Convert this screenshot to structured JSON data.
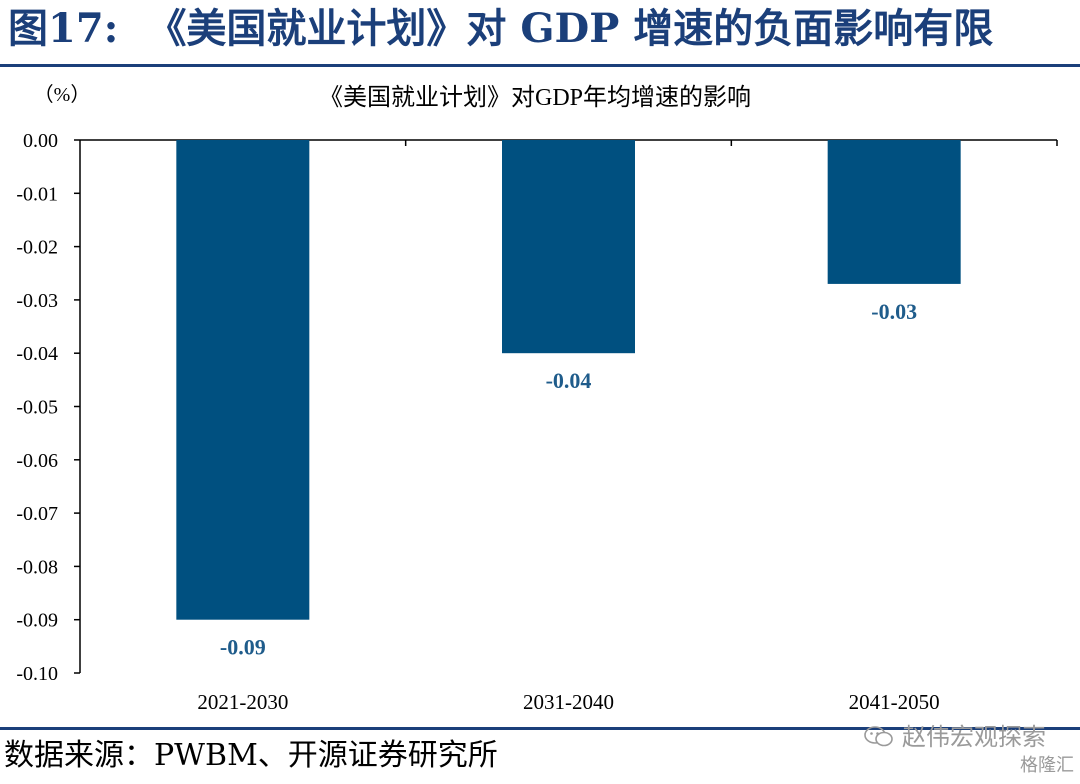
{
  "figure": {
    "number": "图17:",
    "title": "《美国就业计划》对 GDP 增速的负面影响有限",
    "source": "数据来源：PWBM、开源证券研究所",
    "watermark": "赵伟宏观探索",
    "watermark2": "格隆汇"
  },
  "colors": {
    "bar": "#005080",
    "data_label": "#1f5c8b",
    "title_blue": "#1b3f7a",
    "axis": "#000000"
  },
  "chart_data": {
    "type": "bar",
    "title": "《美国就业计划》对GDP年均增速的影响",
    "ylabel": "（%）",
    "xlabel": "",
    "categories": [
      "2021-2030",
      "2031-2040",
      "2041-2050"
    ],
    "values": [
      -0.09,
      -0.04,
      -0.027
    ],
    "data_labels": [
      "-0.09",
      "-0.04",
      "-0.03"
    ],
    "ylim": [
      -0.1,
      0.0
    ],
    "yticks": [
      "0.00",
      "-0.01",
      "-0.02",
      "-0.03",
      "-0.04",
      "-0.05",
      "-0.06",
      "-0.07",
      "-0.08",
      "-0.09",
      "-0.10"
    ],
    "grid": false,
    "legend": "none"
  }
}
